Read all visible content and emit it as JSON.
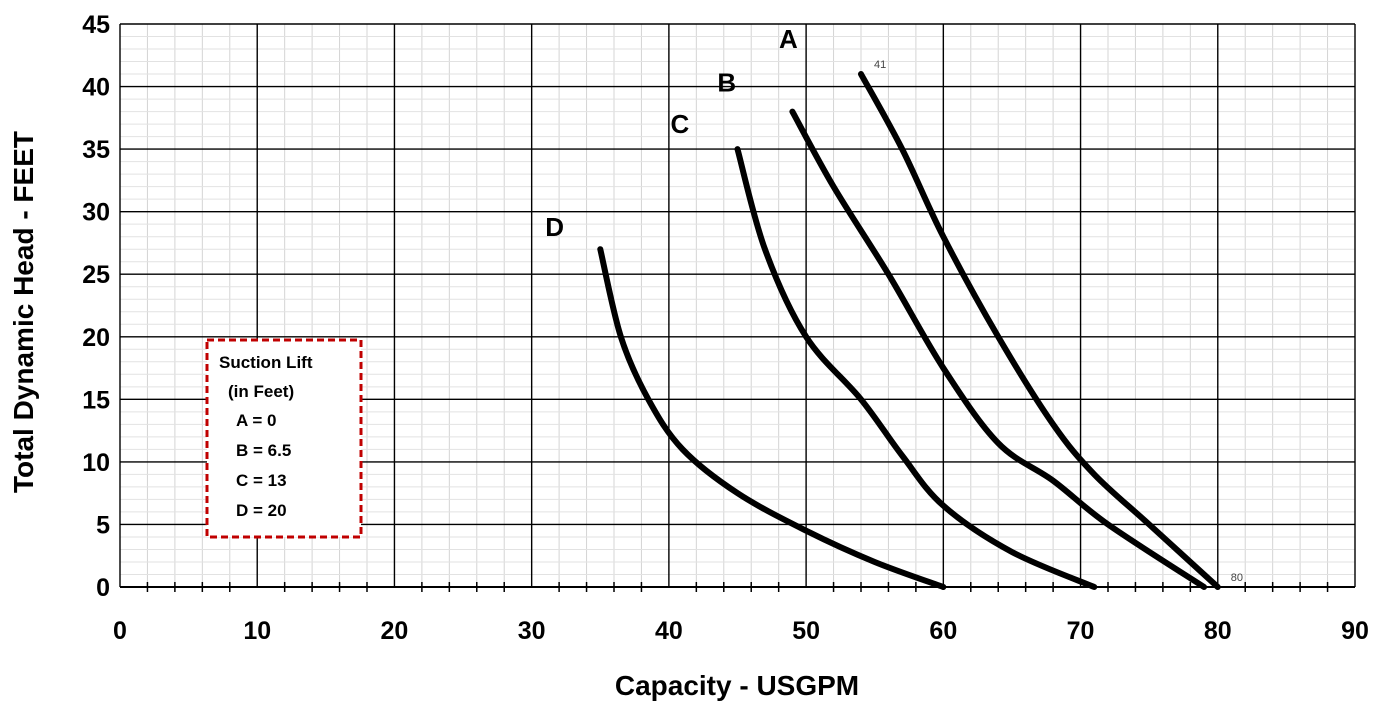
{
  "chart_data": {
    "type": "line",
    "xlabel": "Capacity - USGPM",
    "ylabel": "Total Dynamic Head - FEET",
    "xlim": [
      0,
      90
    ],
    "ylim": [
      0,
      45
    ],
    "x_ticks": [
      0,
      10,
      20,
      30,
      40,
      50,
      60,
      70,
      80,
      90
    ],
    "y_ticks": [
      0,
      5,
      10,
      15,
      20,
      25,
      30,
      35,
      40,
      45
    ],
    "x_minor_step": 2,
    "y_minor_step": 1,
    "grid": true,
    "series": [
      {
        "name": "A",
        "points": [
          [
            54,
            41
          ],
          [
            57,
            35
          ],
          [
            60,
            28
          ],
          [
            64,
            20
          ],
          [
            68,
            13
          ],
          [
            71,
            9
          ],
          [
            75,
            5
          ],
          [
            80,
            0
          ]
        ]
      },
      {
        "name": "B",
        "points": [
          [
            49,
            38
          ],
          [
            52,
            32
          ],
          [
            56,
            25
          ],
          [
            60,
            17.5
          ],
          [
            64,
            11.5
          ],
          [
            68,
            8.5
          ],
          [
            72,
            5
          ],
          [
            79,
            0
          ]
        ]
      },
      {
        "name": "C",
        "points": [
          [
            45,
            35
          ],
          [
            47,
            27
          ],
          [
            50,
            20
          ],
          [
            54,
            15
          ],
          [
            57,
            10.5
          ],
          [
            60,
            6.5
          ],
          [
            65,
            2.8
          ],
          [
            71,
            0
          ]
        ]
      },
      {
        "name": "D",
        "points": [
          [
            35,
            27
          ],
          [
            36.5,
            20
          ],
          [
            38.5,
            15
          ],
          [
            41,
            11
          ],
          [
            45,
            7.5
          ],
          [
            50,
            4.5
          ],
          [
            55,
            2
          ],
          [
            60,
            0
          ]
        ]
      }
    ],
    "point_labels": [
      {
        "text": "41",
        "x": 54,
        "y": 41
      },
      {
        "text": "80",
        "x": 80,
        "y": 0
      }
    ],
    "legend": {
      "title_line1": "Suction Lift",
      "title_line2": "(in Feet)",
      "items": [
        "A = 0",
        "B = 6.5",
        "C = 13",
        "D = 20"
      ],
      "border_color": "#c00000"
    },
    "line_color": "#000000"
  }
}
